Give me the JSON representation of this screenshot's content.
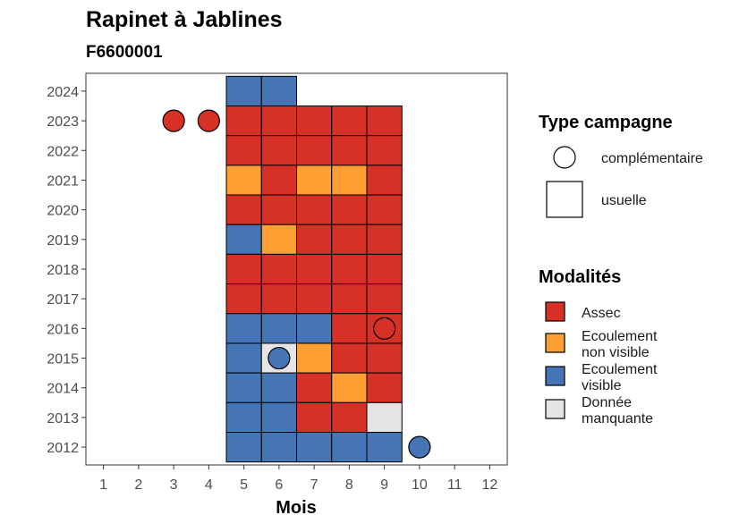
{
  "chart_data": {
    "type": "heatmap",
    "title": "Rapinet à Jablines",
    "subtitle": "F6600001",
    "xlabel": "Mois",
    "ylabel": "",
    "x_ticks": [
      1,
      2,
      3,
      4,
      5,
      6,
      7,
      8,
      9,
      10,
      11,
      12
    ],
    "y_ticks": [
      2012,
      2013,
      2014,
      2015,
      2016,
      2017,
      2018,
      2019,
      2020,
      2021,
      2022,
      2023,
      2024
    ],
    "xlim": [
      0.5,
      12.5
    ],
    "ylim": [
      2011.4,
      2024.6
    ],
    "modalities": [
      {
        "key": "assec",
        "label": "Assec",
        "color": "#d73027"
      },
      {
        "key": "nonvis",
        "label": "Ecoulement non visible",
        "label_lines": [
          "Ecoulement",
          "non visible"
        ],
        "color": "#fd9f32"
      },
      {
        "key": "visible",
        "label": "Ecoulement visible",
        "label_lines": [
          "Ecoulement",
          "visible"
        ],
        "color": "#4575b4"
      },
      {
        "key": "manquante",
        "label": "Donnée manquante",
        "label_lines": [
          "Donnée",
          "manquante"
        ],
        "color": "#e5e5e5"
      }
    ],
    "campaign_types": [
      {
        "key": "complementaire",
        "label": "complémentaire",
        "shape": "circle"
      },
      {
        "key": "usuelle",
        "label": "usuelle",
        "shape": "square"
      }
    ],
    "legend_titles": {
      "type": "Type campagne",
      "modalites": "Modalités"
    },
    "usual_observations": [
      {
        "year": 2024,
        "months": {
          "5": "visible",
          "6": "visible"
        }
      },
      {
        "year": 2023,
        "months": {
          "5": "assec",
          "6": "assec",
          "7": "assec",
          "8": "assec",
          "9": "assec"
        }
      },
      {
        "year": 2022,
        "months": {
          "5": "assec",
          "6": "assec",
          "7": "assec",
          "8": "assec",
          "9": "assec"
        }
      },
      {
        "year": 2021,
        "months": {
          "5": "nonvis",
          "6": "assec",
          "7": "nonvis",
          "8": "nonvis",
          "9": "assec"
        }
      },
      {
        "year": 2020,
        "months": {
          "5": "assec",
          "6": "assec",
          "7": "assec",
          "8": "assec",
          "9": "assec"
        }
      },
      {
        "year": 2019,
        "months": {
          "5": "visible",
          "6": "nonvis",
          "7": "assec",
          "8": "assec",
          "9": "assec"
        }
      },
      {
        "year": 2018,
        "months": {
          "5": "assec",
          "6": "assec",
          "7": "assec",
          "8": "assec",
          "9": "assec"
        }
      },
      {
        "year": 2017,
        "months": {
          "5": "assec",
          "6": "assec",
          "7": "assec",
          "8": "assec",
          "9": "assec"
        }
      },
      {
        "year": 2016,
        "months": {
          "5": "visible",
          "6": "visible",
          "7": "visible",
          "8": "assec",
          "9": "assec"
        }
      },
      {
        "year": 2015,
        "months": {
          "5": "visible",
          "6": "manquante",
          "7": "nonvis",
          "8": "assec",
          "9": "assec"
        }
      },
      {
        "year": 2014,
        "months": {
          "5": "visible",
          "6": "visible",
          "7": "assec",
          "8": "nonvis",
          "9": "assec"
        }
      },
      {
        "year": 2013,
        "months": {
          "5": "visible",
          "6": "visible",
          "7": "assec",
          "8": "assec",
          "9": "manquante"
        }
      },
      {
        "year": 2012,
        "months": {
          "5": "visible",
          "6": "visible",
          "7": "visible",
          "8": "visible",
          "9": "visible"
        }
      }
    ],
    "complementary_observations": [
      {
        "year": 2023,
        "month": 3,
        "modality": "assec"
      },
      {
        "year": 2023,
        "month": 4,
        "modality": "assec"
      },
      {
        "year": 2016,
        "month": 9,
        "modality": "assec"
      },
      {
        "year": 2015,
        "month": 6,
        "modality": "visible"
      },
      {
        "year": 2012,
        "month": 10,
        "modality": "visible"
      }
    ],
    "grid": false,
    "legend_position": "right"
  }
}
